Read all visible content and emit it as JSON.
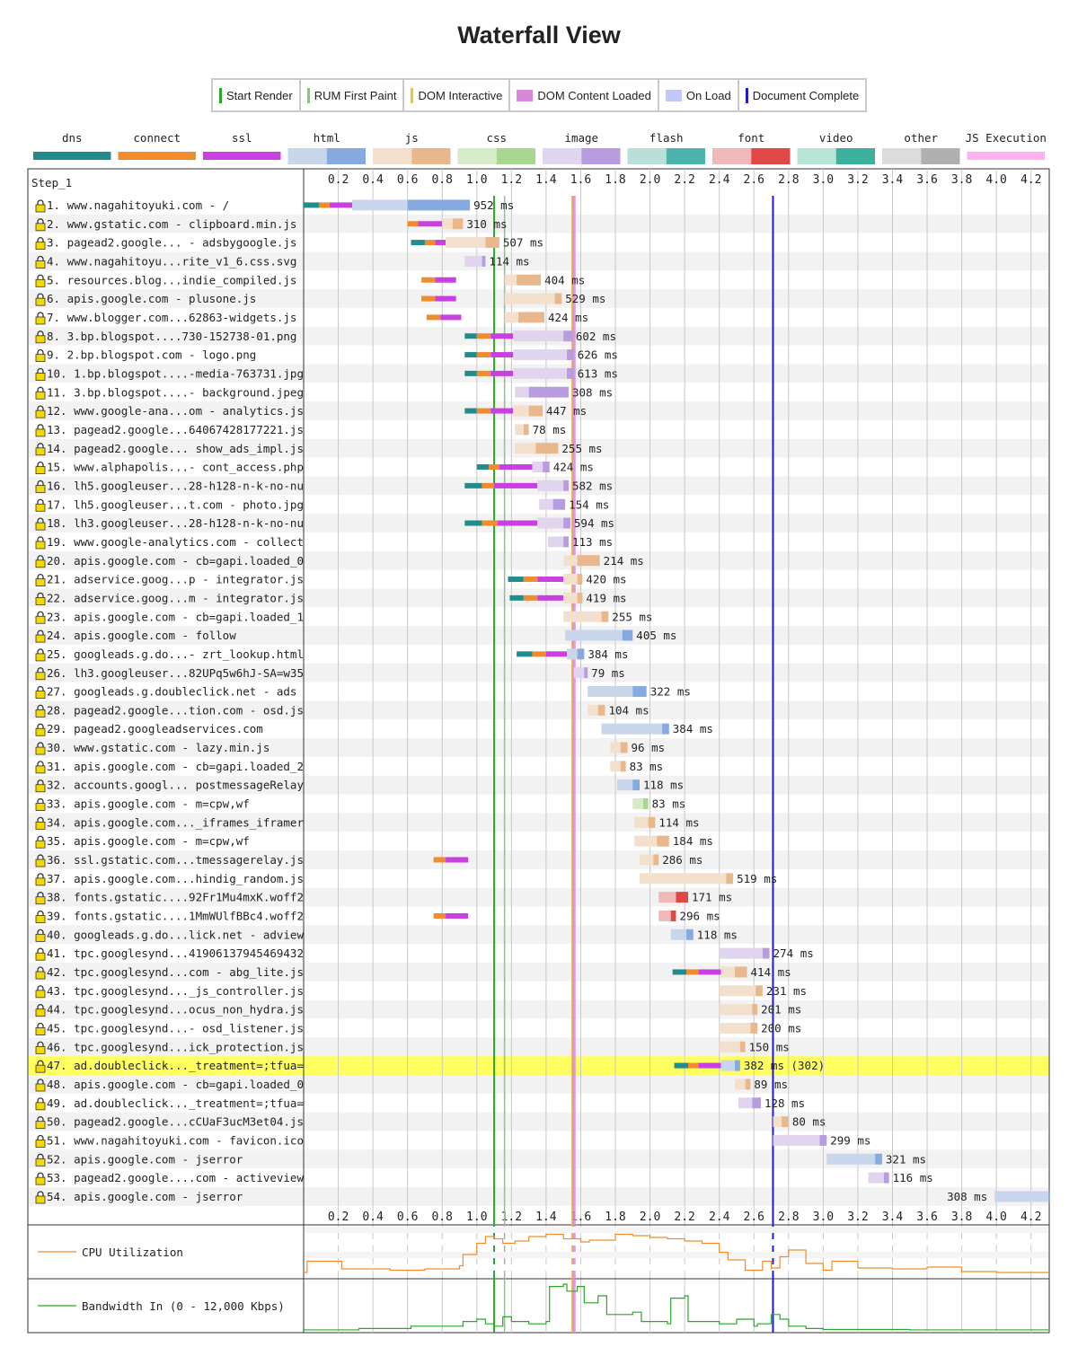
{
  "page_title": "Waterfall View",
  "legend": [
    {
      "label": "Start Render",
      "color": "#28a828",
      "kind": "line"
    },
    {
      "label": "RUM First Paint",
      "color": "#8fbf8f",
      "kind": "line"
    },
    {
      "label": "DOM Interactive",
      "color": "#f4c430",
      "kind": "line"
    },
    {
      "label": "DOM Content Loaded",
      "color": "#d888d8",
      "kind": "block"
    },
    {
      "label": "On Load",
      "color": "#c4c8f8",
      "kind": "block"
    },
    {
      "label": "Document Complete",
      "color": "#1c1cd8",
      "kind": "line"
    }
  ],
  "chart_data": {
    "type": "waterfall",
    "step_label": "Step_1",
    "x_unit": "seconds",
    "xlim": [
      0,
      4.3
    ],
    "x_ticks": [
      "0.2",
      "0.4",
      "0.6",
      "0.8",
      "1.0",
      "1.2",
      "1.4",
      "1.6",
      "1.8",
      "2.0",
      "2.2",
      "2.4",
      "2.6",
      "2.8",
      "3.0",
      "3.2",
      "3.4",
      "3.6",
      "3.8",
      "4.0",
      "4.2"
    ],
    "resource_types": [
      {
        "name": "dns",
        "light": "#228c8c",
        "dark": "#228c8c"
      },
      {
        "name": "connect",
        "light": "#f08c2c",
        "dark": "#f08c2c"
      },
      {
        "name": "ssl",
        "light": "#c840e0",
        "dark": "#c840e0"
      },
      {
        "name": "html",
        "light": "#c8d6ec",
        "dark": "#86aae0"
      },
      {
        "name": "js",
        "light": "#f2e0cc",
        "dark": "#e8b88c"
      },
      {
        "name": "css",
        "light": "#d6ecc8",
        "dark": "#a8d890"
      },
      {
        "name": "image",
        "light": "#e0d4ee",
        "dark": "#b89ce0"
      },
      {
        "name": "flash",
        "light": "#b8e0d8",
        "dark": "#4cb4ac"
      },
      {
        "name": "font",
        "light": "#f0b8b8",
        "dark": "#e04848"
      },
      {
        "name": "video",
        "light": "#b8e4d8",
        "dark": "#3cb09c"
      },
      {
        "name": "other",
        "light": "#dcdcdc",
        "dark": "#b0b0b0"
      },
      {
        "name": "JS Execution",
        "light": "#ffb0f0",
        "dark": "#ffb0f0"
      }
    ],
    "markers": [
      {
        "name": "Start Render",
        "time": 1.1,
        "color": "#28a828"
      },
      {
        "name": "RUM First Paint",
        "time": 1.16,
        "color": "#8fbf8f"
      },
      {
        "name": "DOM Interactive",
        "time": 1.55,
        "color": "#f4c430"
      },
      {
        "name": "DOM Content Loaded",
        "time": 1.56,
        "color": "#d888d8"
      },
      {
        "name": "Document Complete",
        "time": 2.71,
        "color": "#1c1cd8"
      }
    ],
    "requests": [
      {
        "label": "1. www.nagahitoyuki.com - /",
        "type": "html",
        "dns": [
          0.0,
          0.09
        ],
        "connect": [
          0.09,
          0.15
        ],
        "ssl": [
          0.15,
          0.28
        ],
        "start": 0.28,
        "ttfb": 0.6,
        "end": 0.96,
        "duration": "952 ms"
      },
      {
        "label": "2. www.gstatic.com - clipboard.min.js",
        "type": "js",
        "connect": [
          0.6,
          0.66
        ],
        "ssl": [
          0.66,
          0.8
        ],
        "start": 0.8,
        "ttfb": 0.86,
        "end": 0.92,
        "duration": "310 ms"
      },
      {
        "label": "3. pagead2.google... - adsbygoogle.js",
        "type": "js",
        "dns": [
          0.62,
          0.7
        ],
        "connect": [
          0.7,
          0.76
        ],
        "ssl": [
          0.76,
          0.82
        ],
        "start": 0.82,
        "ttfb": 1.05,
        "end": 1.13,
        "duration": "507 ms"
      },
      {
        "label": "4. www.nagahitoyu...rite_v1_6.css.svg",
        "type": "image",
        "start": 0.93,
        "ttfb": 1.03,
        "end": 1.05,
        "duration": "114 ms"
      },
      {
        "label": "5. resources.blog...indie_compiled.js",
        "type": "js",
        "connect": [
          0.68,
          0.76
        ],
        "ssl": [
          0.76,
          0.88
        ],
        "start": 1.16,
        "ttfb": 1.23,
        "end": 1.37,
        "duration": "404 ms"
      },
      {
        "label": "6. apis.google.com - plusone.js",
        "type": "js",
        "connect": [
          0.68,
          0.76
        ],
        "ssl": [
          0.76,
          0.88
        ],
        "start": 1.16,
        "ttfb": 1.45,
        "end": 1.49,
        "duration": "529 ms"
      },
      {
        "label": "7. www.blogger.com...62863-widgets.js",
        "type": "js",
        "connect": [
          0.71,
          0.79
        ],
        "ssl": [
          0.79,
          0.91
        ],
        "start": 1.16,
        "ttfb": 1.24,
        "end": 1.39,
        "duration": "424 ms"
      },
      {
        "label": "8. 3.bp.blogspot....730-152738-01.png",
        "type": "image",
        "dns": [
          0.93,
          1.0
        ],
        "connect": [
          1.0,
          1.08
        ],
        "ssl": [
          1.08,
          1.21
        ],
        "start": 1.21,
        "ttfb": 1.5,
        "end": 1.55,
        "duration": "602 ms"
      },
      {
        "label": "9. 2.bp.blogspot.com - logo.png",
        "type": "image",
        "dns": [
          0.93,
          1.0
        ],
        "connect": [
          1.0,
          1.08
        ],
        "ssl": [
          1.08,
          1.21
        ],
        "start": 1.21,
        "ttfb": 1.52,
        "end": 1.56,
        "duration": "626 ms"
      },
      {
        "label": "10. 1.bp.blogspot....-media-763731.jpg",
        "type": "image",
        "dns": [
          0.93,
          1.0
        ],
        "connect": [
          1.0,
          1.08
        ],
        "ssl": [
          1.08,
          1.21
        ],
        "start": 1.21,
        "ttfb": 1.52,
        "end": 1.56,
        "duration": "613 ms"
      },
      {
        "label": "11. 3.bp.blogspot....- background.jpeg",
        "type": "image",
        "start": 1.22,
        "ttfb": 1.3,
        "end": 1.53,
        "duration": "308 ms"
      },
      {
        "label": "12. www.google-ana...om - analytics.js",
        "type": "js",
        "dns": [
          0.93,
          1.0
        ],
        "connect": [
          1.0,
          1.08
        ],
        "ssl": [
          1.08,
          1.21
        ],
        "start": 1.21,
        "ttfb": 1.3,
        "end": 1.38,
        "duration": "447 ms"
      },
      {
        "label": "13. pagead2.google...64067428177221.js",
        "type": "js",
        "start": 1.22,
        "ttfb": 1.27,
        "end": 1.3,
        "duration": "78 ms"
      },
      {
        "label": "14. pagead2.google... show_ads_impl.js",
        "type": "js",
        "start": 1.22,
        "ttfb": 1.34,
        "end": 1.47,
        "duration": "255 ms"
      },
      {
        "label": "15. www.alphapolis...- cont_access.php",
        "type": "image",
        "dns": [
          1.0,
          1.07
        ],
        "connect": [
          1.07,
          1.13
        ],
        "ssl": [
          1.13,
          1.32
        ],
        "start": 1.32,
        "ttfb": 1.38,
        "end": 1.42,
        "duration": "424 ms"
      },
      {
        "label": "16. lh5.googleuser...28-h128-n-k-no-nu",
        "type": "image",
        "dns": [
          0.93,
          1.03
        ],
        "connect": [
          1.03,
          1.1
        ],
        "ssl": [
          1.1,
          1.35
        ],
        "start": 1.35,
        "ttfb": 1.5,
        "end": 1.53,
        "duration": "582 ms"
      },
      {
        "label": "17. lh5.googleuser...t.com - photo.jpg",
        "type": "image",
        "start": 1.36,
        "ttfb": 1.44,
        "end": 1.51,
        "duration": "154 ms"
      },
      {
        "label": "18. lh3.googleuser...28-h128-n-k-no-nu",
        "type": "image",
        "dns": [
          0.93,
          1.03
        ],
        "connect": [
          1.03,
          1.12
        ],
        "ssl": [
          1.12,
          1.35
        ],
        "start": 1.35,
        "ttfb": 1.5,
        "end": 1.54,
        "duration": "594 ms"
      },
      {
        "label": "19. www.google-analytics.com - collect",
        "type": "image",
        "start": 1.41,
        "ttfb": 1.5,
        "end": 1.53,
        "duration": "113 ms"
      },
      {
        "label": "20. apis.google.com - cb=gapi.loaded_0",
        "type": "js",
        "start": 1.5,
        "ttfb": 1.58,
        "end": 1.71,
        "duration": "214 ms"
      },
      {
        "label": "21. adservice.goog...p - integrator.js",
        "type": "js",
        "dns": [
          1.18,
          1.27
        ],
        "connect": [
          1.27,
          1.35
        ],
        "ssl": [
          1.35,
          1.5
        ],
        "start": 1.5,
        "ttfb": 1.58,
        "end": 1.61,
        "duration": "420 ms"
      },
      {
        "label": "22. adservice.goog...m - integrator.js",
        "type": "js",
        "dns": [
          1.19,
          1.27
        ],
        "connect": [
          1.27,
          1.35
        ],
        "ssl": [
          1.35,
          1.5
        ],
        "start": 1.5,
        "ttfb": 1.58,
        "end": 1.61,
        "duration": "419 ms"
      },
      {
        "label": "23. apis.google.com - cb=gapi.loaded_1",
        "type": "js",
        "start": 1.5,
        "ttfb": 1.72,
        "end": 1.76,
        "duration": "255 ms"
      },
      {
        "label": "24. apis.google.com - follow",
        "type": "html",
        "start": 1.51,
        "ttfb": 1.84,
        "end": 1.9,
        "duration": "405 ms"
      },
      {
        "label": "25. googleads.g.do...- zrt_lookup.html",
        "type": "html",
        "dns": [
          1.23,
          1.32
        ],
        "connect": [
          1.32,
          1.4
        ],
        "ssl": [
          1.4,
          1.52
        ],
        "start": 1.52,
        "ttfb": 1.58,
        "end": 1.62,
        "duration": "384 ms"
      },
      {
        "label": "26. lh3.googleuser...82UPq5w6hJ-SA=w35",
        "type": "image",
        "start": 1.56,
        "ttfb": 1.62,
        "end": 1.64,
        "duration": "79 ms"
      },
      {
        "label": "27. googleads.g.doubleclick.net - ads",
        "type": "html",
        "start": 1.64,
        "ttfb": 1.9,
        "end": 1.98,
        "duration": "322 ms"
      },
      {
        "label": "28. pagead2.google...tion.com - osd.js",
        "type": "js",
        "start": 1.64,
        "ttfb": 1.7,
        "end": 1.74,
        "duration": "104 ms"
      },
      {
        "label": "29. pagead2.googleadservices.com",
        "type": "html",
        "start": 1.72,
        "ttfb": 2.07,
        "end": 2.11,
        "duration": "384 ms"
      },
      {
        "label": "30. www.gstatic.com - lazy.min.js",
        "type": "js",
        "start": 1.77,
        "ttfb": 1.83,
        "end": 1.87,
        "duration": "96 ms"
      },
      {
        "label": "31. apis.google.com - cb=gapi.loaded_2",
        "type": "js",
        "start": 1.77,
        "ttfb": 1.83,
        "end": 1.86,
        "duration": "83 ms"
      },
      {
        "label": "32. accounts.googl... postmessageRelay",
        "type": "html",
        "start": 1.81,
        "ttfb": 1.9,
        "end": 1.94,
        "duration": "118 ms"
      },
      {
        "label": "33. apis.google.com - m=cpw,wf",
        "type": "css",
        "start": 1.9,
        "ttfb": 1.96,
        "end": 1.99,
        "duration": "83 ms"
      },
      {
        "label": "34. apis.google.com..._iframes_iframer",
        "type": "js",
        "start": 1.91,
        "ttfb": 1.99,
        "end": 2.03,
        "duration": "114 ms"
      },
      {
        "label": "35. apis.google.com - m=cpw,wf",
        "type": "js",
        "start": 1.91,
        "ttfb": 2.04,
        "end": 2.11,
        "duration": "184 ms"
      },
      {
        "label": "36. ssl.gstatic.com...tmessagerelay.js",
        "type": "js",
        "connect": [
          0.75,
          0.82
        ],
        "ssl": [
          0.82,
          0.95
        ],
        "start": 1.94,
        "ttfb": 2.02,
        "end": 2.05,
        "duration": "286 ms"
      },
      {
        "label": "37. apis.google.com...hindig_random.js",
        "type": "js",
        "start": 1.94,
        "ttfb": 2.44,
        "end": 2.48,
        "duration": "519 ms"
      },
      {
        "label": "38. fonts.gstatic....92Fr1Mu4mxK.woff2",
        "type": "font",
        "start": 2.05,
        "ttfb": 2.15,
        "end": 2.22,
        "duration": "171 ms"
      },
      {
        "label": "39. fonts.gstatic....1MmWUlfBBc4.woff2",
        "type": "font",
        "connect": [
          0.75,
          0.82
        ],
        "ssl": [
          0.82,
          0.95
        ],
        "start": 2.05,
        "ttfb": 2.12,
        "end": 2.15,
        "duration": "296 ms"
      },
      {
        "label": "40. googleads.g.do...lick.net - adview",
        "type": "html",
        "start": 2.12,
        "ttfb": 2.21,
        "end": 2.25,
        "duration": "118 ms"
      },
      {
        "label": "41. tpc.googlesynd...41906137945469432",
        "type": "image",
        "start": 2.4,
        "ttfb": 2.65,
        "end": 2.69,
        "duration": "274 ms"
      },
      {
        "label": "42. tpc.googlesynd...com - abg_lite.js",
        "type": "js",
        "dns": [
          2.13,
          2.21
        ],
        "connect": [
          2.21,
          2.28
        ],
        "ssl": [
          2.28,
          2.41
        ],
        "start": 2.41,
        "ttfb": 2.49,
        "end": 2.56,
        "duration": "414 ms"
      },
      {
        "label": "43. tpc.googlesynd..._js_controller.js",
        "type": "js",
        "start": 2.4,
        "ttfb": 2.61,
        "end": 2.65,
        "duration": "231 ms"
      },
      {
        "label": "44. tpc.googlesynd...ocus_non_hydra.js",
        "type": "js",
        "start": 2.4,
        "ttfb": 2.59,
        "end": 2.62,
        "duration": "201 ms"
      },
      {
        "label": "45. tpc.googlesynd...- osd_listener.js",
        "type": "js",
        "start": 2.4,
        "ttfb": 2.58,
        "end": 2.62,
        "duration": "200 ms"
      },
      {
        "label": "46. tpc.googlesynd...ick_protection.js",
        "type": "js",
        "start": 2.4,
        "ttfb": 2.52,
        "end": 2.55,
        "duration": "150 ms"
      },
      {
        "label": "47. ad.doubleclick..._treatment=;tfua=",
        "type": "html",
        "dns": [
          2.14,
          2.22
        ],
        "connect": [
          2.22,
          2.28
        ],
        "ssl": [
          2.28,
          2.41
        ],
        "start": 2.41,
        "ttfb": 2.49,
        "end": 2.52,
        "duration": "382 ms (302)",
        "highlight": true
      },
      {
        "label": "48. apis.google.com - cb=gapi.loaded_0",
        "type": "js",
        "start": 2.49,
        "ttfb": 2.55,
        "end": 2.58,
        "duration": "89 ms"
      },
      {
        "label": "49. ad.doubleclick..._treatment=;tfua=",
        "type": "image",
        "start": 2.51,
        "ttfb": 2.59,
        "end": 2.64,
        "duration": "128 ms"
      },
      {
        "label": "50. pagead2.google...cCUaF3ucM3et04.js",
        "type": "js",
        "start": 2.71,
        "ttfb": 2.76,
        "end": 2.8,
        "duration": "80 ms"
      },
      {
        "label": "51. www.nagahitoyuki.com - favicon.ico",
        "type": "image",
        "start": 2.71,
        "ttfb": 2.98,
        "end": 3.02,
        "duration": "299 ms"
      },
      {
        "label": "52. apis.google.com - jserror",
        "type": "html",
        "start": 3.02,
        "ttfb": 3.3,
        "end": 3.34,
        "duration": "321 ms"
      },
      {
        "label": "53. pagead2.google....com - activeview",
        "type": "image",
        "start": 3.26,
        "ttfb": 3.35,
        "end": 3.38,
        "duration": "116 ms"
      },
      {
        "label": "54. apis.google.com - jserror",
        "type": "html",
        "start": 3.99,
        "ttfb": 4.3,
        "end": 4.31,
        "duration": "308 ms",
        "label_before": true
      }
    ],
    "cpu": {
      "label": "CPU Utilization",
      "color": "#f08c2c",
      "t": [
        0,
        0.02,
        0.2,
        0.22,
        0.5,
        0.7,
        0.9,
        0.92,
        1.0,
        1.05,
        1.1,
        1.15,
        1.22,
        1.3,
        1.4,
        1.5,
        1.6,
        1.65,
        1.8,
        1.9,
        2.0,
        2.1,
        2.2,
        2.3,
        2.4,
        2.45,
        2.55,
        2.65,
        2.7,
        2.75,
        2.8,
        2.9,
        3.0,
        3.05,
        3.2,
        3.4,
        3.6,
        3.8,
        4.0,
        4.3
      ],
      "v": [
        10,
        35,
        35,
        18,
        15,
        18,
        25,
        50,
        75,
        90,
        85,
        75,
        80,
        90,
        95,
        85,
        78,
        82,
        95,
        92,
        88,
        85,
        80,
        75,
        55,
        38,
        15,
        35,
        20,
        45,
        60,
        30,
        15,
        35,
        20,
        18,
        22,
        12,
        10,
        10
      ]
    },
    "bandwidth": {
      "label": "Bandwidth In (0 - 12,000 Kbps)",
      "color": "#28a828",
      "t": [
        0,
        0.3,
        0.32,
        0.6,
        0.62,
        0.9,
        0.92,
        1.0,
        1.05,
        1.1,
        1.15,
        1.2,
        1.3,
        1.4,
        1.42,
        1.5,
        1.52,
        1.58,
        1.62,
        1.7,
        1.75,
        1.9,
        1.95,
        2.1,
        2.12,
        2.15,
        2.2,
        2.22,
        2.4,
        2.5,
        2.6,
        2.62,
        2.7,
        2.75,
        2.8,
        2.9,
        3.0,
        3.5,
        4.3
      ],
      "v": [
        2,
        2,
        5,
        5,
        10,
        10,
        20,
        25,
        15,
        10,
        30,
        20,
        15,
        20,
        95,
        100,
        85,
        95,
        60,
        75,
        35,
        40,
        20,
        15,
        70,
        70,
        75,
        20,
        15,
        25,
        10,
        15,
        35,
        25,
        10,
        5,
        3,
        2,
        2
      ]
    }
  }
}
